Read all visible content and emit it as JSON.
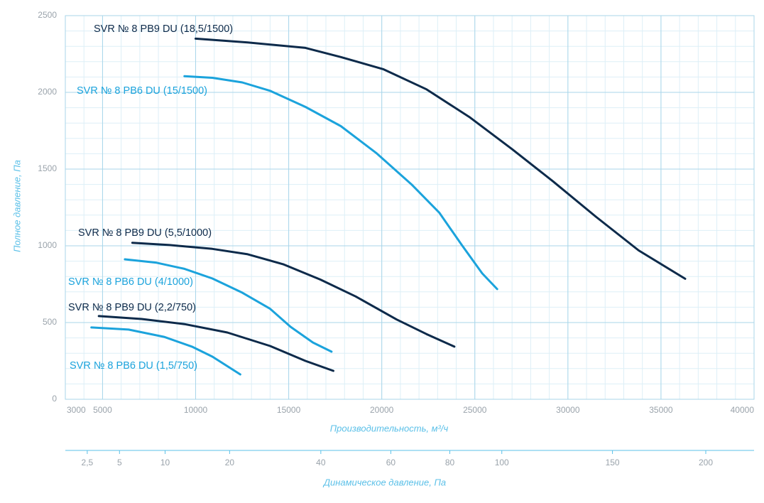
{
  "chart_data": {
    "type": "line",
    "xlabel": "Производительность, м³/ч",
    "ylabel": "Полное давление, Па",
    "x2label": "Динамическое давление, Па",
    "xlim": [
      3000,
      40000
    ],
    "xticks": [
      3000,
      5000,
      10000,
      15000,
      20000,
      25000,
      30000,
      35000,
      40000
    ],
    "ylim": [
      0,
      2500
    ],
    "yticks": [
      0,
      500,
      1000,
      1500,
      2000,
      2500
    ],
    "x2scale": "sqrt",
    "x2lim": [
      1.29,
      228.7
    ],
    "x2ticks": [
      {
        "value": 2.5,
        "label": "2,5"
      },
      5,
      10,
      20,
      40,
      60,
      80,
      100,
      150,
      200
    ],
    "grid": true,
    "minor_grid": {
      "x": 1000,
      "y": 100
    },
    "series": [
      {
        "name": "SVR № 8 PB9 DU (18,5/1500)",
        "color": "#0d2a4a",
        "x": [
          10000,
          12800,
          15900,
          17800,
          20100,
          22400,
          24700,
          27000,
          29200,
          31500,
          33800,
          36300
        ],
        "values": [
          2350,
          2325,
          2290,
          2230,
          2150,
          2020,
          1840,
          1630,
          1420,
          1190,
          970,
          785
        ]
      },
      {
        "name": "SVR № 8 PB6 DU (15/1500)",
        "color": "#1ba3dc",
        "x": [
          9400,
          10900,
          12500,
          14000,
          15900,
          17800,
          19700,
          21600,
          23100,
          24300,
          25400,
          26200
        ],
        "values": [
          2105,
          2095,
          2065,
          2010,
          1905,
          1780,
          1605,
          1400,
          1215,
          1005,
          820,
          718
        ]
      },
      {
        "name": "SVR № 8 PB9 DU (5,5/1000)",
        "color": "#0d2a4a",
        "x": [
          6600,
          8600,
          10900,
          12800,
          14700,
          16700,
          18600,
          20800,
          22400,
          23900
        ],
        "values": [
          1020,
          1005,
          980,
          945,
          880,
          780,
          670,
          520,
          425,
          343
        ]
      },
      {
        "name": "SVR № 8 PB6 DU (4/1000)",
        "color": "#1ba3dc",
        "x": [
          6200,
          7900,
          9400,
          10900,
          12500,
          14000,
          15100,
          16300,
          17300
        ],
        "values": [
          912,
          890,
          850,
          787,
          695,
          590,
          472,
          370,
          310
        ]
      },
      {
        "name": "SVR № 8 PB9 DU (2,2/750)",
        "color": "#0d2a4a",
        "x": [
          4800,
          7100,
          9400,
          11700,
          14000,
          15900,
          17400
        ],
        "values": [
          542,
          523,
          490,
          435,
          347,
          250,
          185
        ]
      },
      {
        "name": "SVR № 8 PB6 DU (1,5/750)",
        "color": "#1ba3dc",
        "x": [
          4400,
          6400,
          8300,
          9800,
          10900,
          12400
        ],
        "values": [
          468,
          454,
          407,
          343,
          278,
          162
        ]
      }
    ]
  }
}
